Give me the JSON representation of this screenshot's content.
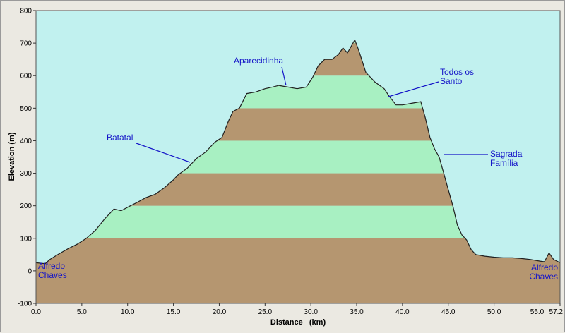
{
  "chart_data": {
    "type": "area",
    "xlabel": "Distance   (km)",
    "ylabel": "Elevation (m)",
    "xlim": [
      0,
      57.2
    ],
    "ylim": [
      -100,
      800
    ],
    "x_ticks": [
      {
        "v": 0,
        "label": "0.0"
      },
      {
        "v": 5,
        "label": "5.0"
      },
      {
        "v": 10,
        "label": "10.0"
      },
      {
        "v": 15,
        "label": "15.0"
      },
      {
        "v": 20,
        "label": "20.0"
      },
      {
        "v": 25,
        "label": "25.0"
      },
      {
        "v": 30,
        "label": "30.0"
      },
      {
        "v": 35,
        "label": "35.0"
      },
      {
        "v": 40,
        "label": "40.0"
      },
      {
        "v": 45,
        "label": "45.0"
      },
      {
        "v": 50,
        "label": "50.0"
      },
      {
        "v": 55,
        "label": "55.0"
      },
      {
        "v": 57.2,
        "label": "57.2"
      }
    ],
    "y_ticks": [
      {
        "v": 800,
        "label": "800"
      },
      {
        "v": 700,
        "label": "700"
      },
      {
        "v": 600,
        "label": "600"
      },
      {
        "v": 500,
        "label": "500"
      },
      {
        "v": 400,
        "label": "400"
      },
      {
        "v": 300,
        "label": "300"
      },
      {
        "v": 200,
        "label": "200"
      },
      {
        "v": 100,
        "label": "100"
      },
      {
        "v": 0,
        "label": "0"
      },
      {
        "v": -100,
        "label": "-100"
      }
    ],
    "x": [
      0,
      1,
      1.5,
      2.5,
      3.5,
      4.5,
      5.5,
      6.5,
      7.5,
      8.5,
      9.3,
      10.3,
      11,
      12,
      13,
      14,
      15,
      15.5,
      16.5,
      17.5,
      18.5,
      19.5,
      20.3,
      21,
      21.5,
      22.2,
      23,
      24,
      25,
      25.8,
      26.5,
      27.5,
      28.5,
      29.5,
      30.2,
      30.8,
      31.5,
      32.3,
      33,
      33.5,
      34,
      34.5,
      34.8,
      35.2,
      36,
      37,
      38,
      38.6,
      39.3,
      40,
      41,
      42,
      42.5,
      43,
      43.5,
      44,
      44.5,
      45,
      45.5,
      46,
      46.5,
      47,
      47.5,
      48,
      49,
      50,
      51,
      52,
      53,
      54,
      55,
      55.5,
      56,
      56.5,
      57,
      57.2
    ],
    "y": [
      25,
      22,
      35,
      52,
      68,
      82,
      100,
      125,
      160,
      190,
      185,
      200,
      210,
      225,
      235,
      255,
      280,
      295,
      315,
      345,
      365,
      395,
      410,
      460,
      490,
      500,
      545,
      550,
      560,
      565,
      570,
      565,
      560,
      565,
      595,
      630,
      650,
      650,
      665,
      685,
      670,
      695,
      710,
      680,
      610,
      580,
      560,
      535,
      510,
      510,
      515,
      520,
      470,
      410,
      375,
      350,
      300,
      250,
      200,
      140,
      110,
      95,
      65,
      50,
      45,
      42,
      40,
      40,
      38,
      35,
      30,
      28,
      55,
      35,
      28,
      25
    ],
    "band_interval": 100,
    "band_colors": [
      "#b59670",
      "#a8f0c2"
    ],
    "colors": {
      "sky": "#c1f1ef",
      "outline": "#202020",
      "annotation": "#1515c8"
    },
    "annotations": [
      {
        "lines": [
          "Aparecidinha"
        ],
        "point": [
          27.5,
          565
        ]
      },
      {
        "lines": [
          "Todos os",
          "Santo"
        ],
        "point": [
          38.6,
          535
        ]
      },
      {
        "lines": [
          "Batatal"
        ],
        "point": [
          16.5,
          315
        ]
      },
      {
        "lines": [
          "Sagrada",
          "Família"
        ],
        "point": [
          44.2,
          355
        ]
      },
      {
        "lines": [
          "Alfredo",
          "Chaves"
        ],
        "point": [
          0.2,
          25
        ]
      },
      {
        "lines": [
          "Alfredo",
          "Chaves"
        ],
        "point": [
          57.0,
          25
        ]
      }
    ]
  }
}
